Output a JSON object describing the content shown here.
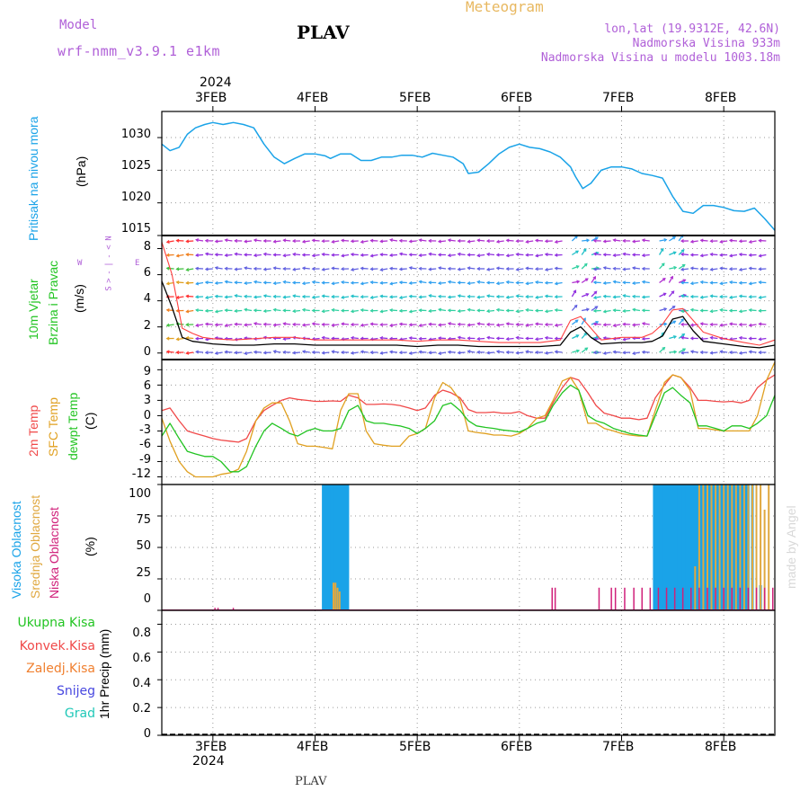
{
  "header": {
    "model_label": "Model",
    "model_name": "wrf-nmm_v3.9.1 e1km",
    "station": "PLAV",
    "title": "Meteogram",
    "coords": "lon,lat (19.9312E, 42.6N)",
    "altitude": "Nadmorska Visina 933m",
    "model_altitude": "Nadmorska Visina u modelu 1003.18m"
  },
  "footer_station": "PLAV",
  "watermark": "made by Angel",
  "time_axis": {
    "year": "2024",
    "days": [
      "3FEB",
      "4FEB",
      "5FEB",
      "6FEB",
      "7FEB",
      "8FEB"
    ],
    "range_days": [
      2.5,
      8.5
    ]
  },
  "colors": {
    "pressure": "#1aa3e8",
    "t2m": "#f04848",
    "sfc": "#e0a020",
    "dew": "#22c422",
    "high_cloud": "#1aa3e8",
    "mid_cloud": "#e0a840",
    "low_cloud": "#d0207a",
    "wind_speed": "#000000",
    "gust": "#ff4040"
  },
  "panels": {
    "pressure": {
      "labels": [
        "Pritisak na nivou mora",
        "(hPa)"
      ],
      "yticks": [
        "1030",
        "1025",
        "1020",
        "1015"
      ]
    },
    "wind": {
      "labels": [
        "10m Vjetar",
        "Brzina i Pravac",
        "(m/s)"
      ],
      "compass": [
        "N",
        "<",
        "-",
        "|",
        "-",
        ">",
        "S"
      ],
      "compass_w": "W",
      "compass_e": "E",
      "yticks": [
        "8",
        "6",
        "4",
        "2",
        "0"
      ]
    },
    "temp": {
      "labels": [
        "2m Temp",
        "SFC Temp",
        "dewpt Temp",
        "(C)"
      ],
      "yticks": [
        "9",
        "6",
        "3",
        "0",
        "-3",
        "-6",
        "-9",
        "-12"
      ]
    },
    "cloud": {
      "labels": [
        "Visoka Oblacnost",
        "Srednja Oblacnost",
        "Niska Oblacnost",
        "(%)"
      ],
      "yticks": [
        "100",
        "75",
        "50",
        "25",
        "0"
      ]
    },
    "precip": {
      "legend": [
        "Ukupna Kisa",
        "Konvek.Kisa",
        "Zaledj.Kisa",
        "Snijeg",
        "Grad"
      ],
      "legend_colors": [
        "#22c422",
        "#f04848",
        "#f08030",
        "#4848e0",
        "#20c8b8"
      ],
      "ylabel": "1hr Precip (mm)",
      "yticks": [
        "0.8",
        "0.6",
        "0.4",
        "0.2",
        "0"
      ]
    }
  },
  "chart_data": [
    {
      "type": "line",
      "name": "pressure",
      "ylabel": "(hPa)",
      "ylim": [
        1015,
        1034
      ],
      "x": [
        2.5,
        2.58,
        2.67,
        2.75,
        2.83,
        2.92,
        3.0,
        3.1,
        3.2,
        3.3,
        3.4,
        3.5,
        3.6,
        3.7,
        3.8,
        3.9,
        4.0,
        4.1,
        4.15,
        4.25,
        4.35,
        4.45,
        4.55,
        4.65,
        4.75,
        4.85,
        4.95,
        5.05,
        5.15,
        5.25,
        5.35,
        5.45,
        5.5,
        5.6,
        5.7,
        5.8,
        5.9,
        6.0,
        6.1,
        6.2,
        6.3,
        6.4,
        6.5,
        6.55,
        6.62,
        6.7,
        6.8,
        6.9,
        7.0,
        7.1,
        7.2,
        7.3,
        7.4,
        7.5,
        7.6,
        7.7,
        7.8,
        7.9,
        8.0,
        8.1,
        8.2,
        8.3,
        8.4,
        8.5
      ],
      "y": [
        1029,
        1028,
        1028.5,
        1030.5,
        1031.5,
        1032,
        1032.3,
        1032,
        1032.3,
        1032,
        1031.5,
        1029,
        1027,
        1026,
        1026.8,
        1027.5,
        1027.5,
        1027.2,
        1026.8,
        1027.5,
        1027.5,
        1026.5,
        1026.5,
        1027,
        1027,
        1027.3,
        1027.3,
        1027,
        1027.6,
        1027.3,
        1027,
        1026,
        1024.5,
        1024.7,
        1026,
        1027.5,
        1028.5,
        1029,
        1028.5,
        1028.3,
        1027.8,
        1027,
        1025.5,
        1024,
        1022.2,
        1023,
        1025,
        1025.5,
        1025.5,
        1025.2,
        1024.5,
        1024.2,
        1023.8,
        1021,
        1018.7,
        1018.4,
        1019.6,
        1019.6,
        1019.3,
        1018.8,
        1018.7,
        1019.2,
        1017.6,
        1015.8
      ]
    },
    {
      "type": "line",
      "name": "wind",
      "ylabel": "(m/s)",
      "ylim": [
        -0.5,
        9
      ],
      "x": [
        2.5,
        2.6,
        2.7,
        2.8,
        2.9,
        3.0,
        3.2,
        3.4,
        3.6,
        3.8,
        4.0,
        4.2,
        4.4,
        4.6,
        4.8,
        5.0,
        5.2,
        5.4,
        5.6,
        5.8,
        6.0,
        6.2,
        6.4,
        6.5,
        6.6,
        6.7,
        6.8,
        7.0,
        7.2,
        7.3,
        7.4,
        7.5,
        7.6,
        7.7,
        7.8,
        8.0,
        8.2,
        8.35,
        8.5
      ],
      "series": [
        {
          "y": [
            5.5,
            3.5,
            1.2,
            0.9,
            0.8,
            0.7,
            0.6,
            0.6,
            0.7,
            0.7,
            0.6,
            0.6,
            0.6,
            0.6,
            0.6,
            0.5,
            0.6,
            0.6,
            0.5,
            0.5,
            0.5,
            0.5,
            0.6,
            1.6,
            2.0,
            1.2,
            0.7,
            0.8,
            0.8,
            0.9,
            1.3,
            2.6,
            2.8,
            1.7,
            0.9,
            0.7,
            0.5,
            0.4,
            0.6
          ]
        },
        {
          "y": [
            8.5,
            6,
            1.9,
            1.5,
            1.2,
            1.1,
            1.0,
            1.1,
            1.2,
            1.2,
            1.0,
            1.0,
            1.0,
            1.0,
            1.0,
            0.9,
            1.0,
            1.0,
            0.9,
            0.8,
            0.8,
            0.8,
            1.0,
            2.5,
            2.8,
            1.9,
            1.0,
            1.2,
            1.2,
            1.5,
            2.2,
            3.3,
            3.4,
            2.5,
            1.6,
            1.1,
            0.8,
            0.6,
            1.0
          ]
        }
      ]
    },
    {
      "type": "line",
      "name": "temperature",
      "ylabel": "(C)",
      "ylim": [
        -13.5,
        11
      ],
      "x": [
        2.5,
        2.58,
        2.67,
        2.75,
        2.83,
        2.92,
        3.0,
        3.08,
        3.17,
        3.25,
        3.33,
        3.42,
        3.5,
        3.58,
        3.67,
        3.75,
        3.83,
        3.92,
        4.0,
        4.08,
        4.17,
        4.25,
        4.33,
        4.42,
        4.5,
        4.58,
        4.67,
        4.75,
        4.83,
        4.92,
        5.0,
        5.08,
        5.17,
        5.25,
        5.33,
        5.42,
        5.5,
        5.58,
        5.67,
        5.75,
        5.83,
        5.92,
        6.0,
        6.08,
        6.17,
        6.25,
        6.33,
        6.42,
        6.5,
        6.58,
        6.67,
        6.75,
        6.83,
        6.92,
        7.0,
        7.08,
        7.17,
        7.25,
        7.33,
        7.42,
        7.5,
        7.58,
        7.67,
        7.75,
        7.83,
        7.92,
        8.0,
        8.08,
        8.17,
        8.25,
        8.33,
        8.42,
        8.5
      ],
      "series": [
        {
          "name": "2m Temp",
          "y": [
            1,
            1.5,
            -1,
            -3,
            -3.5,
            -4,
            -4.5,
            -4.8,
            -5,
            -5.2,
            -4.5,
            -1,
            1,
            2,
            3,
            3.5,
            3.2,
            3,
            2.8,
            2.8,
            2.9,
            2.8,
            4,
            3.5,
            2.2,
            2.2,
            2.3,
            2.2,
            2,
            1.5,
            1,
            1.5,
            4,
            5,
            4.5,
            3.5,
            1.2,
            0.6,
            0.6,
            0.7,
            0.5,
            0.5,
            0.8,
            0,
            -0.5,
            -0.5,
            2.5,
            5.5,
            7.5,
            7,
            4.5,
            2,
            0.5,
            0,
            -0.5,
            -0.5,
            -0.8,
            -0.5,
            3.5,
            6,
            8,
            7.5,
            5.5,
            3,
            3,
            2.8,
            2.7,
            2.8,
            2.5,
            3,
            5.5,
            7,
            8
          ]
        },
        {
          "name": "SFC Temp",
          "y": [
            -0.5,
            -5,
            -9,
            -11,
            -12,
            -12,
            -12,
            -11.5,
            -11.2,
            -10.5,
            -7,
            -1,
            1.5,
            2.5,
            2.5,
            -1,
            -5.5,
            -6,
            -6,
            -6.2,
            -6.5,
            1,
            4.3,
            4.3,
            -3,
            -5.5,
            -5.8,
            -6,
            -6,
            -4,
            -3.5,
            -2.5,
            3.5,
            6.5,
            5.5,
            3,
            -3,
            -3.3,
            -3.5,
            -3.8,
            -3.8,
            -4,
            -3.5,
            -2.5,
            -0.5,
            0,
            3,
            6.8,
            7.5,
            5,
            -1.5,
            -1.5,
            -2.5,
            -3,
            -3.5,
            -3.8,
            -4,
            -4,
            1,
            6.5,
            8,
            7.5,
            5,
            -2.5,
            -2.5,
            -2.8,
            -3,
            -3,
            -3,
            -3,
            0,
            7,
            10.5
          ]
        },
        {
          "name": "dewpt Temp",
          "y": [
            -4,
            -1.5,
            -4.5,
            -7,
            -7.5,
            -8,
            -8,
            -9,
            -11,
            -11,
            -10,
            -6,
            -3,
            -1.5,
            -2.5,
            -3.5,
            -4,
            -3,
            -2.5,
            -3,
            -3,
            -2.5,
            1,
            2,
            -1,
            -1.5,
            -1.5,
            -1.8,
            -2,
            -2.5,
            -3.5,
            -2.5,
            -1,
            2,
            2.5,
            1,
            -1,
            -2,
            -2.3,
            -2.5,
            -2.8,
            -3,
            -3.2,
            -2.5,
            -1.5,
            -1,
            2,
            4.5,
            6,
            5,
            0,
            -1,
            -1.5,
            -2.5,
            -3,
            -3.5,
            -3.8,
            -4,
            0,
            4.5,
            5.5,
            4,
            2.5,
            -2,
            -2,
            -2.5,
            -3,
            -2,
            -2,
            -2.5,
            -1.5,
            0,
            4
          ]
        }
      ]
    },
    {
      "type": "bar",
      "name": "cloud",
      "ylabel": "(%)",
      "ylim": [
        0,
        100
      ],
      "series": [
        {
          "name": "Visoka Oblacnost",
          "x": [
            4.08,
            4.1,
            4.12,
            4.14,
            4.16,
            4.18,
            4.2,
            4.22,
            4.24,
            4.26,
            4.28,
            4.3,
            4.32,
            7.32,
            7.34,
            7.36,
            7.38,
            7.4,
            7.42,
            7.44,
            7.46,
            7.48,
            7.5,
            7.52,
            7.54,
            7.56,
            7.58,
            7.6,
            7.62,
            7.64,
            7.66,
            7.68,
            7.7,
            7.72,
            7.74,
            7.76,
            7.78,
            7.8,
            7.82,
            7.84,
            7.86,
            7.88,
            7.9,
            7.92,
            7.94,
            7.96,
            7.98,
            8.0,
            8.02,
            8.04,
            8.06,
            8.08,
            8.1,
            8.12,
            8.14,
            8.16,
            8.18,
            8.2,
            8.22,
            8.24,
            8.28,
            8.36
          ],
          "values": [
            100,
            100,
            100,
            100,
            100,
            100,
            100,
            100,
            100,
            100,
            100,
            100,
            100,
            100,
            100,
            100,
            100,
            100,
            100,
            100,
            100,
            100,
            100,
            100,
            100,
            100,
            100,
            100,
            100,
            100,
            100,
            100,
            100,
            100,
            100,
            100,
            100,
            100,
            100,
            100,
            100,
            100,
            100,
            100,
            100,
            100,
            100,
            100,
            100,
            100,
            100,
            100,
            100,
            100,
            100,
            100,
            100,
            100,
            100,
            100,
            100,
            20
          ]
        },
        {
          "name": "Srednja Oblacnost",
          "x": [
            4.18,
            4.2,
            4.22,
            4.24,
            7.72,
            7.76,
            7.8,
            7.84,
            7.88,
            7.92,
            7.96,
            8.0,
            8.04,
            8.08,
            8.12,
            8.16,
            8.2,
            8.24,
            8.28,
            8.32,
            8.36,
            8.4,
            8.44
          ],
          "values": [
            22,
            22,
            18,
            15,
            35,
            100,
            100,
            100,
            100,
            100,
            100,
            100,
            100,
            100,
            100,
            100,
            100,
            100,
            100,
            100,
            100,
            80,
            100
          ]
        },
        {
          "name": "Niska Oblacnost",
          "x": [
            3.02,
            3.05,
            3.2,
            6.32,
            6.35,
            6.78,
            6.9,
            6.94,
            7.03,
            7.12,
            7.2,
            7.28,
            7.36,
            7.44,
            7.52,
            7.6,
            7.68,
            7.76,
            7.84,
            7.92,
            8.0,
            8.08,
            8.16,
            8.24,
            8.32,
            8.4,
            8.48
          ],
          "values": [
            2,
            2,
            2,
            18,
            18,
            18,
            18,
            18,
            18,
            18,
            18,
            18,
            18,
            18,
            18,
            18,
            18,
            18,
            18,
            18,
            18,
            18,
            18,
            18,
            18,
            18,
            18
          ]
        }
      ]
    },
    {
      "type": "bar",
      "name": "precip",
      "ylabel": "1hr Precip (mm)",
      "ylim": [
        0,
        0.9
      ],
      "series": [
        {
          "name": "Ukupna Kisa",
          "values": []
        }
      ]
    }
  ]
}
